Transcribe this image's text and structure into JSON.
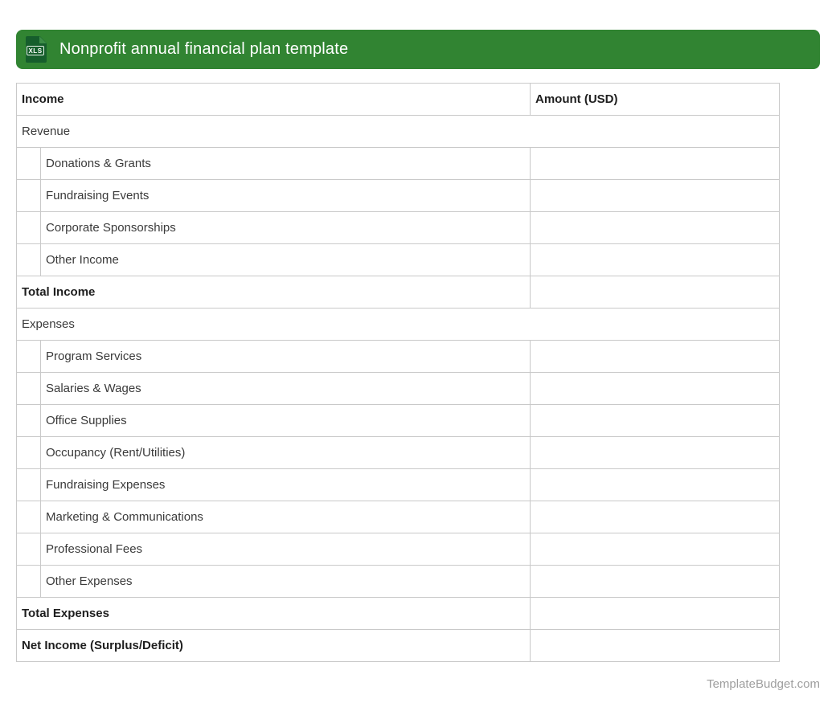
{
  "header": {
    "title": "Nonprofit annual financial plan template",
    "icon_label": "XLS",
    "bar_color": "#318432",
    "icon_doc_color": "#165e2c"
  },
  "table": {
    "columns": {
      "category": "Income",
      "amount": "Amount (USD)"
    },
    "rows": [
      {
        "type": "section",
        "label": "Revenue"
      },
      {
        "type": "item",
        "label": "Donations & Grants",
        "amount": ""
      },
      {
        "type": "item",
        "label": "Fundraising Events",
        "amount": ""
      },
      {
        "type": "item",
        "label": "Corporate Sponsorships",
        "amount": ""
      },
      {
        "type": "item",
        "label": "Other Income",
        "amount": ""
      },
      {
        "type": "total",
        "label": "Total Income",
        "amount": ""
      },
      {
        "type": "section",
        "label": "Expenses"
      },
      {
        "type": "item",
        "label": "Program Services",
        "amount": ""
      },
      {
        "type": "item",
        "label": "Salaries & Wages",
        "amount": ""
      },
      {
        "type": "item",
        "label": "Office Supplies",
        "amount": ""
      },
      {
        "type": "item",
        "label": "Occupancy (Rent/Utilities)",
        "amount": ""
      },
      {
        "type": "item",
        "label": "Fundraising Expenses",
        "amount": ""
      },
      {
        "type": "item",
        "label": "Marketing & Communications",
        "amount": ""
      },
      {
        "type": "item",
        "label": "Professional Fees",
        "amount": ""
      },
      {
        "type": "item",
        "label": "Other Expenses",
        "amount": ""
      },
      {
        "type": "total",
        "label": "Total Expenses",
        "amount": ""
      },
      {
        "type": "total",
        "label": "Net Income (Surplus/Deficit)",
        "amount": ""
      }
    ]
  },
  "footer": {
    "credit": "TemplateBudget.com"
  }
}
